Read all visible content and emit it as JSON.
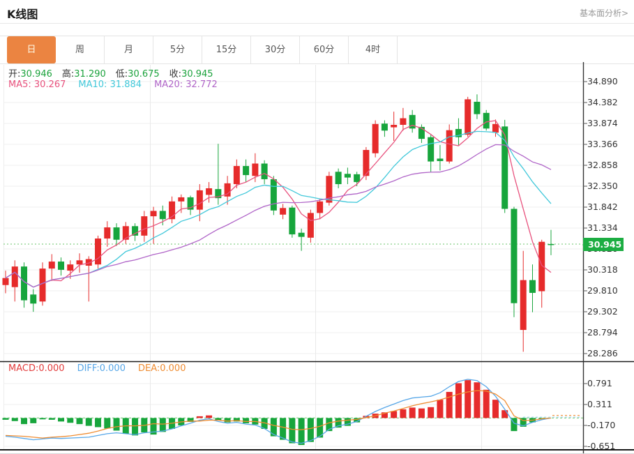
{
  "header": {
    "title": "K线图",
    "link_label": "基本面分析>"
  },
  "tabs": {
    "items": [
      "日",
      "周",
      "月",
      "5分",
      "15分",
      "30分",
      "60分",
      "4时"
    ],
    "active": "日",
    "active_index": 0
  },
  "quote_bar": {
    "open_label": "开:",
    "open_value": "30.946",
    "high_label": "高:",
    "high_value": "31.290",
    "low_label": "低:",
    "low_value": "30.675",
    "close_label": "收:",
    "close_value": "30.945"
  },
  "ma_bar": {
    "ma5_label": "MA5: ",
    "ma5_value": "30.267",
    "ma10_label": "MA10: ",
    "ma10_value": "31.884",
    "ma20_label": "MA20: ",
    "ma20_value": "32.772"
  },
  "macd_bar": {
    "macd_label": "MACD:",
    "macd_value": "0.000",
    "diff_label": "DIFF:",
    "diff_value": "0.000",
    "dea_label": "DEA:",
    "dea_value": "0.000"
  },
  "price_axis": {
    "labels": [
      "34.890",
      "34.382",
      "33.874",
      "33.366",
      "32.858",
      "32.350",
      "31.842",
      "31.334",
      "30.826",
      "30.318",
      "29.810",
      "29.302",
      "28.794",
      "28.286"
    ],
    "current_price_label": "30.945"
  },
  "macd_axis": {
    "labels": [
      "0.791",
      "0.311",
      "-0.170",
      "-0.651"
    ]
  },
  "colors": {
    "accent_orange": "#eb8441",
    "up_red": "#e62b2b",
    "down_green": "#17a53c",
    "badge_green": "#1cad42",
    "price_line_green": "#86d086",
    "ma5": "#e8517d",
    "ma10": "#41c8da",
    "ma20": "#b065c8",
    "diff_blue": "#57a7e8",
    "dea_orange": "#ef8c31",
    "value_green": "#1ba23c",
    "macd_label_red": "#e23b3b"
  },
  "chart_data": {
    "type": "candlestick",
    "title": "K线图",
    "period": "日",
    "up_color": "#e62b2b",
    "down_color": "#17a53c",
    "legend": [
      "MA5",
      "MA10",
      "MA20"
    ],
    "ma_periods": [
      5,
      10,
      20
    ],
    "ma_latest": {
      "MA5": 30.267,
      "MA10": 31.884,
      "MA20": 32.772
    },
    "current_price": 30.945,
    "y_ticks": [
      34.89,
      34.382,
      33.874,
      33.366,
      32.858,
      32.35,
      31.842,
      31.334,
      30.826,
      30.318,
      29.81,
      29.302,
      28.794,
      28.286
    ],
    "ohlc_latest": {
      "open": 30.946,
      "high": 31.29,
      "low": 30.675,
      "close": 30.945
    },
    "candles": [
      [
        29.95,
        30.3,
        29.75,
        30.12
      ],
      [
        29.9,
        30.55,
        29.55,
        30.4
      ],
      [
        30.4,
        30.5,
        29.4,
        29.58
      ],
      [
        29.72,
        29.85,
        29.3,
        29.5
      ],
      [
        29.55,
        30.5,
        29.45,
        30.35
      ],
      [
        30.35,
        30.7,
        30.05,
        30.52
      ],
      [
        30.52,
        30.62,
        30.18,
        30.32
      ],
      [
        30.3,
        30.55,
        30.1,
        30.45
      ],
      [
        30.45,
        30.72,
        30.25,
        30.55
      ],
      [
        30.42,
        30.65,
        29.55,
        30.58
      ],
      [
        30.45,
        31.15,
        30.35,
        31.08
      ],
      [
        31.08,
        31.5,
        30.88,
        31.35
      ],
      [
        31.35,
        31.45,
        30.9,
        31.05
      ],
      [
        31.05,
        31.48,
        30.95,
        31.38
      ],
      [
        31.38,
        31.45,
        31.02,
        31.15
      ],
      [
        31.15,
        31.75,
        31.0,
        31.62
      ],
      [
        31.62,
        31.85,
        30.95,
        31.75
      ],
      [
        31.75,
        31.88,
        31.4,
        31.55
      ],
      [
        31.55,
        32.1,
        31.45,
        31.98
      ],
      [
        31.98,
        32.15,
        31.7,
        32.08
      ],
      [
        32.08,
        32.12,
        31.65,
        31.78
      ],
      [
        31.78,
        32.4,
        31.5,
        32.25
      ],
      [
        32.14,
        32.45,
        31.95,
        32.3
      ],
      [
        32.28,
        33.38,
        31.9,
        32.06
      ],
      [
        32.1,
        32.6,
        31.9,
        32.42
      ],
      [
        32.4,
        33.0,
        32.3,
        32.84
      ],
      [
        32.84,
        33.0,
        32.45,
        32.62
      ],
      [
        32.6,
        33.15,
        32.45,
        32.9
      ],
      [
        32.9,
        32.98,
        32.4,
        32.52
      ],
      [
        32.52,
        32.6,
        31.65,
        31.76
      ],
      [
        31.66,
        31.92,
        31.55,
        31.82
      ],
      [
        31.83,
        31.88,
        31.1,
        31.18
      ],
      [
        31.22,
        31.32,
        30.78,
        31.12
      ],
      [
        31.1,
        31.78,
        30.98,
        31.7
      ],
      [
        31.7,
        32.05,
        31.55,
        31.98
      ],
      [
        31.95,
        32.7,
        31.88,
        32.6
      ],
      [
        32.7,
        32.78,
        32.3,
        32.4
      ],
      [
        32.65,
        32.8,
        32.4,
        32.56
      ],
      [
        32.64,
        32.7,
        32.35,
        32.45
      ],
      [
        32.6,
        33.3,
        32.5,
        33.23
      ],
      [
        33.15,
        33.95,
        33.05,
        33.86
      ],
      [
        33.87,
        33.95,
        33.55,
        33.7
      ],
      [
        33.78,
        34.16,
        33.45,
        33.84
      ],
      [
        33.84,
        34.25,
        33.7,
        34.0
      ],
      [
        34.08,
        34.2,
        33.65,
        33.75
      ],
      [
        33.79,
        33.85,
        33.4,
        33.5
      ],
      [
        33.54,
        33.6,
        32.69,
        32.95
      ],
      [
        33.02,
        33.35,
        32.73,
        32.96
      ],
      [
        32.95,
        33.85,
        32.9,
        33.71
      ],
      [
        33.74,
        34.0,
        33.35,
        33.54
      ],
      [
        33.6,
        34.52,
        33.55,
        34.46
      ],
      [
        34.4,
        34.58,
        33.98,
        34.1
      ],
      [
        34.13,
        34.2,
        33.7,
        33.75
      ],
      [
        33.65,
        33.97,
        33.55,
        33.86
      ],
      [
        33.8,
        33.96,
        31.7,
        31.8
      ],
      [
        31.8,
        31.85,
        29.17,
        29.51
      ],
      [
        28.86,
        30.78,
        28.33,
        30.07
      ],
      [
        30.07,
        30.45,
        29.29,
        29.76
      ],
      [
        29.8,
        31.05,
        29.4,
        31.0
      ],
      [
        30.946,
        31.29,
        30.675,
        30.945
      ]
    ],
    "macd": {
      "ticks": [
        0.791,
        0.311,
        -0.17,
        -0.651
      ],
      "latest": {
        "MACD": 0.0,
        "DIFF": 0.0,
        "DEA": 0.0
      },
      "histogram": [
        -0.04,
        -0.07,
        -0.14,
        -0.12,
        -0.03,
        -0.04,
        -0.08,
        -0.11,
        -0.14,
        -0.18,
        -0.21,
        -0.24,
        -0.29,
        -0.36,
        -0.4,
        -0.33,
        -0.38,
        -0.32,
        -0.25,
        -0.17,
        -0.09,
        0.04,
        0.06,
        -0.05,
        -0.1,
        -0.08,
        -0.12,
        -0.15,
        -0.25,
        -0.42,
        -0.5,
        -0.58,
        -0.62,
        -0.55,
        -0.45,
        -0.3,
        -0.22,
        -0.18,
        -0.1,
        0.05,
        0.1,
        0.13,
        0.16,
        0.2,
        0.24,
        0.22,
        0.25,
        0.42,
        0.6,
        0.8,
        0.87,
        0.82,
        0.65,
        0.42,
        0.18,
        -0.3,
        -0.2,
        -0.1,
        -0.03,
        0.0
      ],
      "diff": [
        -0.42,
        -0.44,
        -0.47,
        -0.5,
        -0.48,
        -0.46,
        -0.47,
        -0.46,
        -0.45,
        -0.44,
        -0.4,
        -0.36,
        -0.34,
        -0.36,
        -0.38,
        -0.34,
        -0.32,
        -0.3,
        -0.25,
        -0.18,
        -0.12,
        -0.05,
        -0.02,
        -0.08,
        -0.12,
        -0.1,
        -0.14,
        -0.16,
        -0.24,
        -0.38,
        -0.46,
        -0.55,
        -0.58,
        -0.52,
        -0.42,
        -0.26,
        -0.18,
        -0.14,
        -0.08,
        0.04,
        0.15,
        0.24,
        0.32,
        0.4,
        0.46,
        0.48,
        0.5,
        0.58,
        0.72,
        0.84,
        0.89,
        0.86,
        0.72,
        0.5,
        0.2,
        -0.12,
        -0.18,
        -0.1,
        -0.04,
        0.0
      ],
      "dea": [
        -0.4,
        -0.41,
        -0.42,
        -0.44,
        -0.46,
        -0.44,
        -0.43,
        -0.41,
        -0.38,
        -0.35,
        -0.3,
        -0.24,
        -0.2,
        -0.18,
        -0.18,
        -0.17,
        -0.13,
        -0.14,
        -0.12,
        -0.09,
        -0.07,
        -0.07,
        -0.05,
        -0.05,
        -0.07,
        -0.06,
        -0.08,
        -0.08,
        -0.11,
        -0.17,
        -0.21,
        -0.26,
        -0.27,
        -0.24,
        -0.19,
        -0.11,
        -0.07,
        -0.05,
        -0.03,
        0.01,
        0.05,
        0.11,
        0.16,
        0.22,
        0.28,
        0.33,
        0.37,
        0.42,
        0.48,
        0.55,
        0.6,
        0.63,
        0.62,
        0.55,
        0.4,
        0.05,
        -0.06,
        -0.05,
        -0.02,
        0.0
      ]
    }
  }
}
